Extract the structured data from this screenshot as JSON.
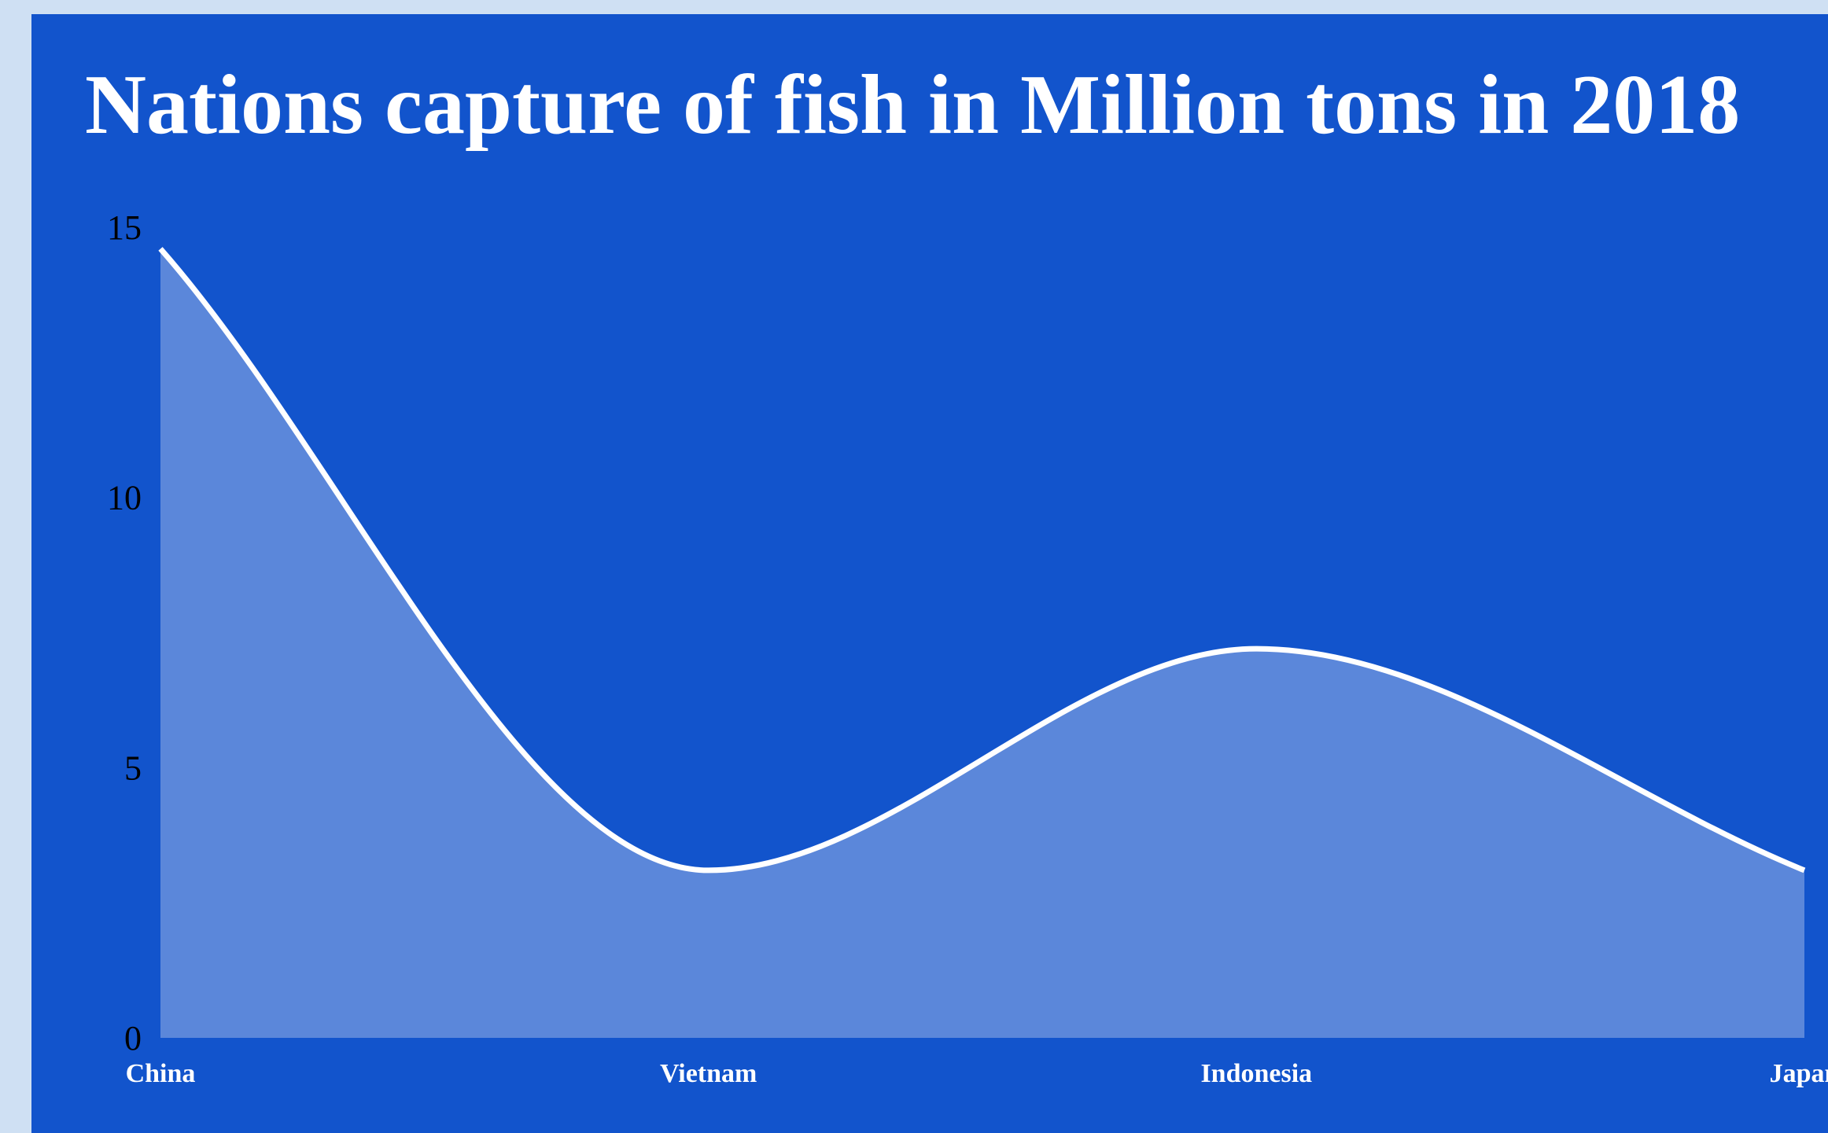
{
  "chart_data": {
    "type": "area",
    "title": "Nations capture of fish in Million tons in 2018",
    "xlabel": "",
    "ylabel": "",
    "categories": [
      "China",
      "Vietnam",
      "Indonesia",
      "Japan"
    ],
    "values": [
      14.6,
      3.1,
      7.2,
      3.1
    ],
    "yticks": [
      "0",
      "5",
      "10",
      "15"
    ],
    "ylim": [
      0,
      15
    ],
    "grid": false,
    "legend": "none",
    "colors": {
      "background": "#cfe0f3",
      "panel": "#1254cc",
      "area_fill": "#5b87da",
      "line": "#ffffff",
      "tick_text": "#000000",
      "category_text": "#ffffff",
      "title_text": "#ffffff"
    }
  }
}
